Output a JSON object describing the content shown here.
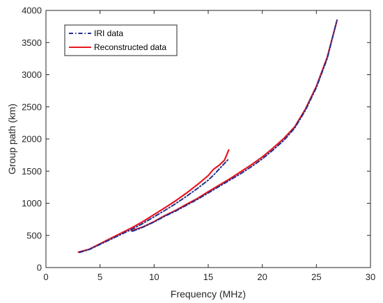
{
  "chart_data": {
    "type": "line",
    "xlabel": "Frequency (MHz)",
    "ylabel": "Group path (km)",
    "xlim": [
      0,
      30
    ],
    "ylim": [
      0,
      4000
    ],
    "x_ticks": [
      0,
      5,
      10,
      15,
      20,
      25,
      30
    ],
    "y_ticks": [
      0,
      500,
      1000,
      1500,
      2000,
      2500,
      3000,
      3500,
      4000
    ],
    "grid": false,
    "legend_position": "top-left",
    "series": [
      {
        "name": "IRI data",
        "style": "dash-dot",
        "color": "#1f2f8f",
        "segments": [
          [
            [
              3.1,
              235
            ],
            [
              4,
              280
            ],
            [
              5,
              360
            ],
            [
              6,
              440
            ],
            [
              7,
              520
            ],
            [
              8,
              600
            ],
            [
              9,
              690
            ],
            [
              10,
              790
            ],
            [
              11,
              890
            ],
            [
              12,
              995
            ],
            [
              13,
              1110
            ],
            [
              14,
              1230
            ],
            [
              15,
              1360
            ],
            [
              15.5,
              1440
            ],
            [
              16,
              1530
            ],
            [
              16.5,
              1620
            ],
            [
              16.9,
              1690
            ]
          ],
          [
            [
              8,
              565
            ],
            [
              9,
              630
            ],
            [
              10,
              710
            ],
            [
              11,
              800
            ],
            [
              12,
              880
            ],
            [
              13,
              970
            ],
            [
              14,
              1060
            ],
            [
              15,
              1160
            ],
            [
              16,
              1260
            ],
            [
              17,
              1360
            ],
            [
              18,
              1460
            ],
            [
              19,
              1570
            ],
            [
              20,
              1690
            ],
            [
              21,
              1830
            ],
            [
              22,
              1980
            ],
            [
              23,
              2170
            ],
            [
              24,
              2450
            ],
            [
              25,
              2800
            ],
            [
              26,
              3250
            ],
            [
              26.9,
              3850
            ]
          ]
        ]
      },
      {
        "name": "Reconstructed data",
        "style": "solid",
        "color": "#e8171f",
        "segments": [
          [
            [
              3.0,
              240
            ],
            [
              4,
              285
            ],
            [
              5,
              370
            ],
            [
              6,
              455
            ],
            [
              7,
              540
            ],
            [
              8,
              625
            ],
            [
              9,
              720
            ],
            [
              10,
              825
            ],
            [
              11,
              930
            ],
            [
              12,
              1040
            ],
            [
              13,
              1160
            ],
            [
              14,
              1290
            ],
            [
              15,
              1430
            ],
            [
              15.5,
              1530
            ],
            [
              16,
              1590
            ],
            [
              16.5,
              1670
            ],
            [
              16.9,
              1830
            ]
          ],
          [
            [
              7.9,
              570
            ],
            [
              9,
              635
            ],
            [
              10,
              715
            ],
            [
              11,
              810
            ],
            [
              12,
              890
            ],
            [
              13,
              985
            ],
            [
              14,
              1075
            ],
            [
              15,
              1180
            ],
            [
              16,
              1280
            ],
            [
              17,
              1380
            ],
            [
              18,
              1490
            ],
            [
              19,
              1600
            ],
            [
              20,
              1720
            ],
            [
              21,
              1860
            ],
            [
              22,
              2010
            ],
            [
              23,
              2190
            ],
            [
              24,
              2470
            ],
            [
              25,
              2820
            ],
            [
              26,
              3270
            ],
            [
              26.9,
              3840
            ]
          ]
        ]
      }
    ]
  }
}
